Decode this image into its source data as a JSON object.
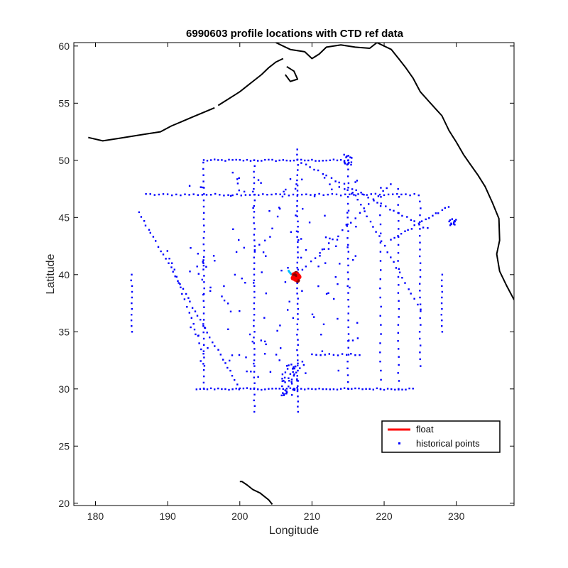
{
  "chart_data": {
    "type": "scatter",
    "title": "6990603 profile locations with CTD ref data",
    "xlabel": "Longitude",
    "ylabel": "Latitude",
    "xlim": [
      177,
      238
    ],
    "ylim": [
      19.8,
      60.3
    ],
    "xticks": [
      180,
      190,
      200,
      210,
      220,
      230
    ],
    "yticks": [
      20,
      25,
      30,
      35,
      40,
      45,
      50,
      55,
      60
    ],
    "grid": false,
    "box": true,
    "legend": {
      "placement": "bottom-right",
      "entries": [
        {
          "label": "float",
          "color": "#ff0000",
          "marker": "line"
        },
        {
          "label": "historical points",
          "color": "#0000ff",
          "marker": "dot"
        }
      ]
    },
    "series": [
      {
        "name": "float",
        "color": "#ff0000",
        "x": [
          207.6,
          207.9,
          208.1,
          207.8,
          207.5,
          207.7,
          208.0,
          208.2,
          207.9,
          207.6,
          207.4,
          207.7
        ],
        "y": [
          39.8,
          39.6,
          39.9,
          40.1,
          40.0,
          39.7,
          39.5,
          39.8,
          40.0,
          39.9,
          39.7,
          39.6
        ]
      },
      {
        "name": "historical points",
        "color": "#0000ff",
        "x": [],
        "y": []
      }
    ],
    "float_path_colors": [
      "#00bfff",
      "#00e5ee",
      "#7fff00",
      "#ffd700",
      "#ff8c00",
      "#ff0000",
      "#8b0000"
    ],
    "float_path": {
      "x": [
        206.7,
        206.9,
        207.2,
        207.5,
        207.8,
        208.0,
        207.7,
        207.4,
        207.6,
        207.9
      ],
      "y": [
        40.4,
        40.2,
        40.0,
        39.9,
        39.7,
        39.8,
        39.6,
        39.7,
        39.9,
        39.8
      ]
    },
    "historical_lines": [
      {
        "kind": "row",
        "lat": 50.0,
        "lon": [
          195,
          215
        ],
        "step": 0.5
      },
      {
        "kind": "row",
        "lat": 47.0,
        "lon": [
          187,
          225
        ],
        "step": 0.6
      },
      {
        "kind": "row",
        "lat": 30.0,
        "lon": [
          194,
          224
        ],
        "step": 0.5
      },
      {
        "kind": "row",
        "lat": 33.0,
        "lon": [
          210,
          217
        ],
        "step": 0.6
      },
      {
        "kind": "col",
        "lon": 202.0,
        "lat": [
          28,
          50
        ],
        "step": 0.5
      },
      {
        "kind": "col",
        "lon": 208.0,
        "lat": [
          28,
          51
        ],
        "step": 0.45
      },
      {
        "kind": "col",
        "lon": 195.0,
        "lat": [
          30,
          50
        ],
        "step": 0.55
      },
      {
        "kind": "col",
        "lon": 215.0,
        "lat": [
          30,
          51
        ],
        "step": 0.6
      },
      {
        "kind": "col",
        "lon": 225.0,
        "lat": [
          32,
          47
        ],
        "step": 0.6
      },
      {
        "kind": "col",
        "lon": 222.0,
        "lat": [
          30,
          48
        ],
        "step": 0.7
      },
      {
        "kind": "col",
        "lon": 219.5,
        "lat": [
          30,
          48
        ],
        "step": 0.8
      },
      {
        "kind": "col",
        "lon": 228.0,
        "lat": [
          35,
          40
        ],
        "step": 0.5
      },
      {
        "kind": "col",
        "lon": 185.0,
        "lat": [
          35,
          40
        ],
        "step": 0.5
      },
      {
        "kind": "diag",
        "from": [
          186,
          45.5
        ],
        "to": [
          200,
          30
        ],
        "step": 0.5
      },
      {
        "kind": "diag",
        "from": [
          190,
          42
        ],
        "to": [
          195,
          33
        ],
        "step": 0.6
      },
      {
        "kind": "diag",
        "from": [
          208,
          50
        ],
        "to": [
          226,
          44
        ],
        "step": 0.6
      },
      {
        "kind": "diag",
        "from": [
          208,
          40
        ],
        "to": [
          221,
          48
        ],
        "step": 0.7
      },
      {
        "kind": "diag",
        "from": [
          221,
          43
        ],
        "to": [
          229,
          46
        ],
        "step": 0.5
      },
      {
        "kind": "diag",
        "from": [
          225,
          37
        ],
        "to": [
          216,
          47
        ],
        "step": 0.6
      }
    ],
    "historical_clusters": [
      {
        "center": [
          207,
          30.8
        ],
        "spread": [
          1.2,
          1.4
        ],
        "count": 45
      },
      {
        "center": [
          229.5,
          44.6
        ],
        "spread": [
          0.5,
          0.3
        ],
        "count": 12
      },
      {
        "center": [
          215,
          50.1
        ],
        "spread": [
          0.6,
          0.5
        ],
        "count": 14
      },
      {
        "center": [
          205,
          40
        ],
        "spread": [
          12,
          9
        ],
        "count": 160
      }
    ],
    "coastline": {
      "north_america": [
        [
          205,
          60.3
        ],
        [
          207,
          59.7
        ],
        [
          209,
          59.5
        ],
        [
          210,
          58.9
        ],
        [
          211,
          59.3
        ],
        [
          212,
          59.9
        ],
        [
          214,
          60.1
        ],
        [
          216,
          59.9
        ],
        [
          218,
          59.8
        ],
        [
          219,
          60.3
        ],
        [
          221,
          59.7
        ],
        [
          222,
          58.9
        ],
        [
          223,
          58.1
        ],
        [
          224,
          57.2
        ],
        [
          225,
          56.0
        ],
        [
          226,
          55.3
        ],
        [
          227,
          54.6
        ],
        [
          228,
          53.9
        ],
        [
          229,
          52.6
        ],
        [
          230,
          51.6
        ],
        [
          231,
          50.5
        ],
        [
          232,
          49.6
        ],
        [
          233,
          48.7
        ],
        [
          234,
          47.7
        ],
        [
          235,
          46.3
        ],
        [
          235.9,
          44.9
        ],
        [
          236,
          43.0
        ],
        [
          235.6,
          41.8
        ],
        [
          236,
          40.3
        ],
        [
          237,
          39.0
        ],
        [
          238,
          37.8
        ]
      ],
      "alaska_peninsula": [
        [
          197,
          54.8
        ],
        [
          198,
          55.2
        ],
        [
          199,
          55.6
        ],
        [
          200,
          56.0
        ],
        [
          201,
          56.5
        ],
        [
          202,
          57.0
        ],
        [
          203,
          57.5
        ],
        [
          204,
          58.1
        ],
        [
          205,
          58.6
        ],
        [
          206,
          58.9
        ]
      ],
      "aleutians": [
        [
          179,
          52.0
        ],
        [
          181,
          51.7
        ],
        [
          183,
          51.9
        ],
        [
          185,
          52.1
        ],
        [
          187,
          52.3
        ],
        [
          189,
          52.5
        ],
        [
          190.5,
          53.0
        ],
        [
          192,
          53.4
        ],
        [
          193.5,
          53.8
        ],
        [
          195,
          54.2
        ],
        [
          196.5,
          54.6
        ]
      ],
      "kodiak": [
        [
          206.5,
          58.2
        ],
        [
          207.5,
          57.8
        ],
        [
          208,
          57.1
        ],
        [
          207,
          56.9
        ],
        [
          206.3,
          57.5
        ]
      ],
      "hawaii": [
        [
          200.0,
          21.9
        ],
        [
          200.3,
          21.9
        ],
        [
          201.0,
          21.6
        ],
        [
          201.8,
          21.2
        ],
        [
          202.8,
          20.9
        ],
        [
          204.0,
          20.3
        ],
        [
          204.5,
          19.9
        ]
      ]
    }
  }
}
